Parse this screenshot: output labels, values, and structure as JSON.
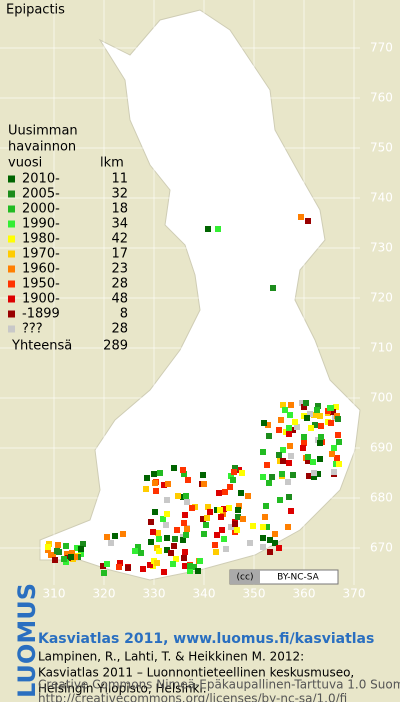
{
  "map": {
    "title": "Epipactis",
    "legend": {
      "header": [
        "Uusimman",
        "havainnon",
        "vuosi"
      ],
      "count_header": "lkm",
      "rows": [
        {
          "label": "2010-",
          "count": "11",
          "color": "#006400"
        },
        {
          "label": "2005-",
          "count": "32",
          "color": "#1c8c1c"
        },
        {
          "label": "2000-",
          "count": "18",
          "color": "#22bb22"
        },
        {
          "label": "1990-",
          "count": "34",
          "color": "#33ee33"
        },
        {
          "label": "1980-",
          "count": "42",
          "color": "#ffff00"
        },
        {
          "label": "1970-",
          "count": "17",
          "color": "#ffcc00"
        },
        {
          "label": "1960-",
          "count": "23",
          "color": "#ff7f00"
        },
        {
          "label": "1950-",
          "count": "28",
          "color": "#ff3300"
        },
        {
          "label": "1900-",
          "count": "48",
          "color": "#dd0000"
        },
        {
          "label": "-1899",
          "count": "8",
          "color": "#990000"
        },
        {
          "label": "???",
          "count": "28",
          "color": "#c8c8c8"
        }
      ],
      "total_label": "Yhteensä",
      "total": "289"
    },
    "northing": [
      770,
      760,
      750,
      740,
      730,
      720,
      710,
      700,
      690,
      680,
      670
    ],
    "easting": [
      310,
      320,
      330,
      340,
      350,
      360,
      370
    ],
    "badge": "BY-NC-SA"
  },
  "footer": {
    "brand": "LUOMUS",
    "heading": "Kasviatlas 2011, www.luomus.fi/kasviatlas",
    "citation": [
      "Lampinen, R., Lahti, T. & Heikkinen M. 2012:",
      "Kasviatlas 2011 – Luonnontieteellinen keskusmuseo,",
      "Helsingin Yliopisto, Helsinki."
    ],
    "license": [
      "Creative Commons Nimeä-Epäkaupallinen-Tarttuva 1.0 Suomi",
      "http://creativecommons.org/licenses/by-nc-sa/1.0/fi"
    ]
  }
}
